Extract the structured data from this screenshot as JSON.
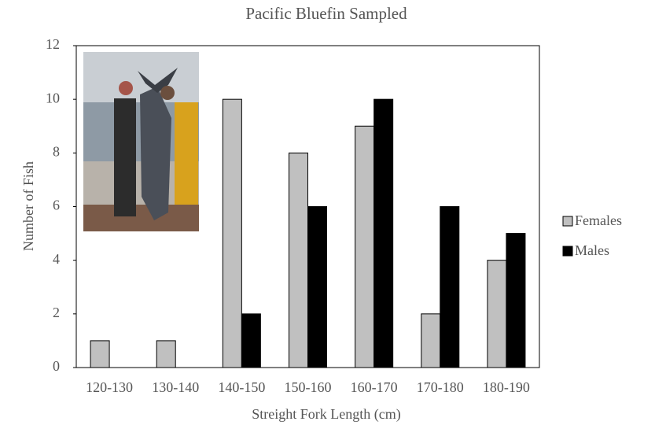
{
  "chart_data": {
    "type": "bar",
    "title": "Pacific Bluefin Sampled",
    "x_label": "Streight Fork Length (cm)",
    "y_label": "Number of Fish",
    "categories": [
      "120-130",
      "130-140",
      "140-150",
      "150-160",
      "160-170",
      "170-180",
      "180-190"
    ],
    "series": [
      {
        "name": "Females",
        "color": "#c0c0c0",
        "values": [
          1,
          1,
          10,
          8,
          9,
          2,
          4
        ]
      },
      {
        "name": "Males",
        "color": "#000000",
        "values": [
          0,
          0,
          2,
          6,
          10,
          6,
          5
        ]
      }
    ],
    "ylim": [
      0,
      12
    ],
    "yticks": [
      0,
      2,
      4,
      6,
      8,
      10,
      12
    ],
    "grid": false,
    "legend": "right"
  }
}
